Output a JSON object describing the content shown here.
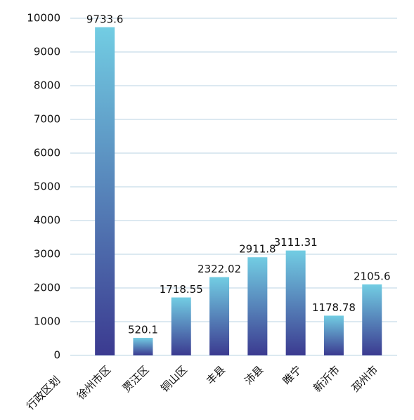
{
  "chart_data": {
    "type": "bar",
    "x_label": "行政区划",
    "categories": [
      "徐州市区",
      "贾汪区",
      "铜山区",
      "丰县",
      "沛县",
      "睢宁",
      "新沂市",
      "邳州市"
    ],
    "values": [
      9733.6,
      520.1,
      1718.55,
      2322.02,
      2911.8,
      3111.31,
      1178.78,
      2105.6
    ],
    "gradient": [
      "#72cde3",
      "#3b3a90"
    ],
    "ylim": [
      0,
      10000
    ],
    "yticks": [
      0,
      1000,
      2000,
      3000,
      4000,
      5000,
      6000,
      7000,
      8000,
      9000,
      10000
    ],
    "grid": true
  }
}
